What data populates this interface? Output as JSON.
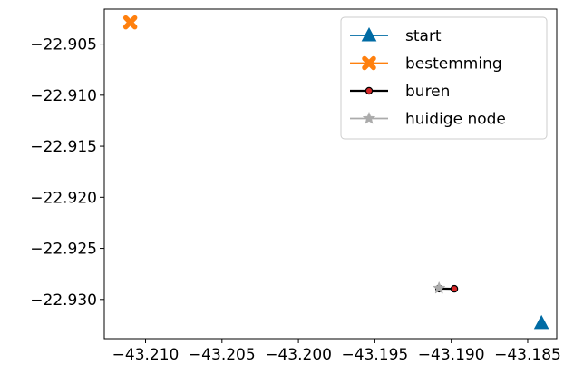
{
  "chart_data": {
    "type": "line",
    "xlim": [
      -43.2127,
      -43.1831
    ],
    "ylim": [
      -22.93384,
      -22.90157
    ],
    "xticks": [
      {
        "value": -43.21,
        "label": "−43.210"
      },
      {
        "value": -43.205,
        "label": "−43.205"
      },
      {
        "value": -43.2,
        "label": "−43.200"
      },
      {
        "value": -43.195,
        "label": "−43.195"
      },
      {
        "value": -43.19,
        "label": "−43.190"
      },
      {
        "value": -43.185,
        "label": "−43.185"
      }
    ],
    "yticks": [
      {
        "value": -22.905,
        "label": "−22.905"
      },
      {
        "value": -22.91,
        "label": "−22.910"
      },
      {
        "value": -22.915,
        "label": "−22.915"
      },
      {
        "value": -22.92,
        "label": "−22.920"
      },
      {
        "value": -22.925,
        "label": "−22.925"
      },
      {
        "value": -22.93,
        "label": "−22.930"
      }
    ],
    "grid": false,
    "legend_position": "top-right",
    "series": [
      {
        "name": "start",
        "marker": "triangle",
        "color": "#006ba4",
        "points": [
          [
            -43.1841,
            -22.93232
          ]
        ]
      },
      {
        "name": "bestemming",
        "marker": "x",
        "color": "#ff800e",
        "points": [
          [
            -43.211,
            -22.90287
          ]
        ]
      },
      {
        "name": "buren",
        "marker": "dot",
        "color": "#000000",
        "marker_fill": "#d62728",
        "points": [
          [
            -43.1908,
            -22.92894
          ],
          [
            -43.1898,
            -22.92896
          ]
        ]
      },
      {
        "name": "huidige node",
        "marker": "star",
        "color": "#ababab",
        "points": [
          [
            -43.1908,
            -22.9289
          ]
        ]
      }
    ]
  }
}
